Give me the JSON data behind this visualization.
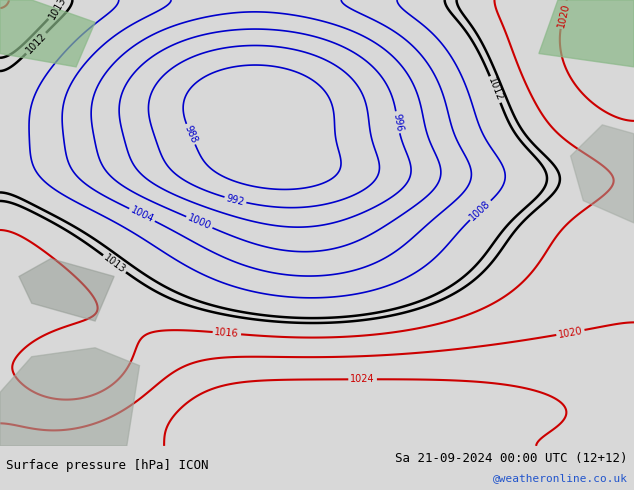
{
  "title_left": "Surface pressure [hPa] ICON",
  "title_right": "Sa 21-09-2024 00:00 UTC (12+12)",
  "credit": "@weatheronline.co.uk",
  "bg_color": "#d8d8d8",
  "map_bg_color": "#c8d8c0",
  "footer_bg": "#ffffff",
  "blue_levels": [
    988,
    992,
    996,
    1000,
    1004,
    1008
  ],
  "black_levels": [
    1012,
    1013
  ],
  "red_levels": [
    1016,
    1020,
    1024
  ],
  "contour_linewidth_blue": 1.2,
  "contour_linewidth_black": 1.8,
  "contour_linewidth_red": 1.5,
  "blue_color": "#0000cc",
  "black_color": "#000000",
  "red_color": "#cc0000",
  "label_fontsize": 7,
  "title_fontsize": 9,
  "credit_color": "#2255cc"
}
